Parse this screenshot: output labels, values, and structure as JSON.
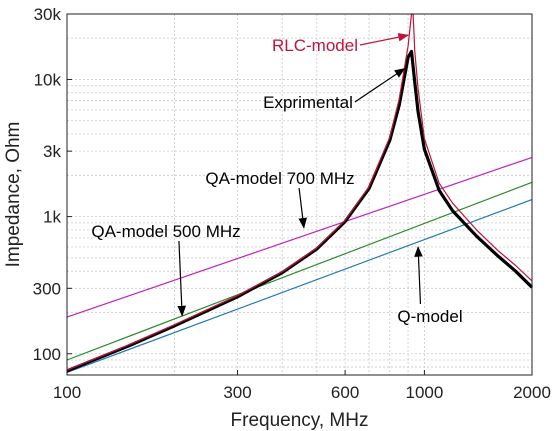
{
  "chart_data": {
    "type": "line",
    "x_scale": "log",
    "y_scale": "log",
    "grid": true,
    "xlabel": "Frequency, MHz",
    "ylabel": "Impedance, Ohm",
    "xlim": [
      100,
      2000
    ],
    "ylim": [
      70,
      30000
    ],
    "x_ticks": [
      {
        "value": 100,
        "label": "100"
      },
      {
        "value": 300,
        "label": "300"
      },
      {
        "value": 600,
        "label": "600"
      },
      {
        "value": 1000,
        "label": "1000"
      },
      {
        "value": 2000,
        "label": "2000"
      }
    ],
    "y_ticks": [
      {
        "value": 100,
        "label": "100"
      },
      {
        "value": 300,
        "label": "300"
      },
      {
        "value": 1000,
        "label": "1k"
      },
      {
        "value": 3000,
        "label": "3k"
      },
      {
        "value": 10000,
        "label": "10k"
      },
      {
        "value": 30000,
        "label": "30k"
      }
    ],
    "series": [
      {
        "name": "Exprimental",
        "color": "#000000",
        "x": [
          100,
          150,
          200,
          300,
          400,
          500,
          600,
          700,
          800,
          850,
          900,
          920,
          940,
          960,
          1000,
          1100,
          1200,
          1400,
          1600,
          1800,
          2000
        ],
        "y": [
          75,
          115,
          160,
          260,
          390,
          580,
          920,
          1600,
          3600,
          6500,
          14500,
          16000,
          9500,
          5800,
          3100,
          1550,
          1100,
          720,
          520,
          400,
          305
        ]
      },
      {
        "name": "RLC-model",
        "color": "#c0143c",
        "x": [
          100,
          150,
          200,
          300,
          400,
          500,
          600,
          700,
          800,
          850,
          900,
          920,
          930,
          940,
          960,
          1000,
          1100,
          1200,
          1400,
          1600,
          1800,
          2000
        ],
        "y": [
          76,
          117,
          163,
          265,
          395,
          590,
          940,
          1650,
          3800,
          7200,
          17500,
          30000,
          30000,
          16000,
          8500,
          3700,
          1750,
          1250,
          800,
          570,
          440,
          340
        ]
      },
      {
        "name": "QA-model 700 MHz",
        "color": "#c020c0",
        "x": [
          100,
          2000
        ],
        "y": [
          185,
          2700
        ]
      },
      {
        "name": "QA-model 500 MHz",
        "color": "#2a8a2a",
        "x": [
          100,
          2000
        ],
        "y": [
          90,
          1780
        ]
      },
      {
        "name": "Q-model",
        "color": "#1f7ab8",
        "x": [
          100,
          2000
        ],
        "y": [
          73,
          1330
        ]
      }
    ],
    "annotations": [
      {
        "text": "RLC-model",
        "color": "#c0143c",
        "point": [
          900,
          21000
        ],
        "text_pos": [
          315,
          51
        ]
      },
      {
        "text": "Exprimental",
        "color": "#000000",
        "point": [
          880,
          12000
        ],
        "text_pos": [
          308,
          108
        ]
      },
      {
        "text": "QA-model 700 MHz",
        "color": "#000000",
        "point": [
          460,
          830
        ],
        "text_pos": [
          280,
          184
        ]
      },
      {
        "text": "QA-model 500 MHz",
        "color": "#000000",
        "point": [
          210,
          190
        ],
        "text_pos": [
          166,
          237
        ]
      },
      {
        "text": "Q-model",
        "color": "#000000",
        "point": [
          960,
          600
        ],
        "text_pos": [
          430,
          322
        ]
      }
    ]
  }
}
